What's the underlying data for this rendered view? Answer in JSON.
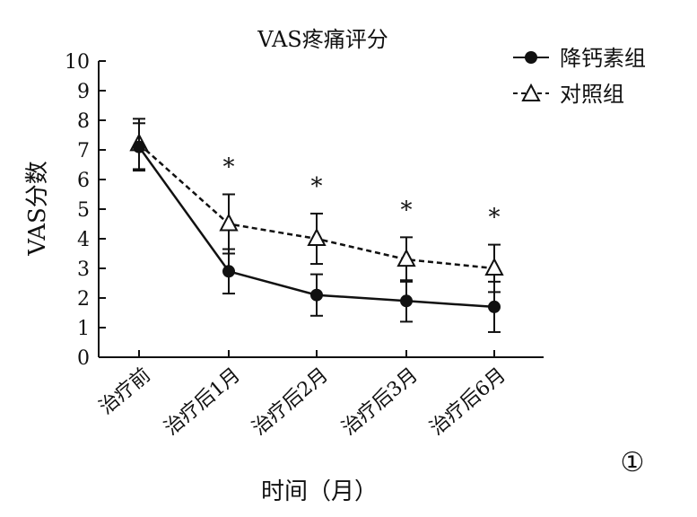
{
  "chart_data": {
    "type": "line",
    "title": "VAS疼痛评分",
    "xlabel": "时间（月）",
    "ylabel": "VAS分数",
    "ylim": [
      0,
      10
    ],
    "yticks": [
      0,
      1,
      2,
      3,
      4,
      5,
      6,
      7,
      8,
      9,
      10
    ],
    "categories": [
      "治疗前",
      "治疗后1月",
      "治疗后2月",
      "治疗后3月",
      "治疗后6月"
    ],
    "series": [
      {
        "name": "降钙素组",
        "marker": "filled-circle",
        "line_style": "solid",
        "values": [
          7.1,
          2.9,
          2.1,
          1.9,
          1.7
        ],
        "error": [
          0.8,
          0.75,
          0.7,
          0.7,
          0.85
        ]
      },
      {
        "name": "对照组",
        "marker": "open-triangle",
        "line_style": "dashed",
        "values": [
          7.2,
          4.5,
          4.0,
          3.3,
          3.0
        ],
        "error": [
          0.85,
          1.0,
          0.85,
          0.75,
          0.8
        ]
      }
    ],
    "significance_marks": [
      "",
      "*",
      "*",
      "*",
      "*"
    ],
    "legend_position": "top-right",
    "grid": false,
    "panel_label": "①",
    "colors": {
      "line": "#111111",
      "background": "#ffffff"
    }
  }
}
